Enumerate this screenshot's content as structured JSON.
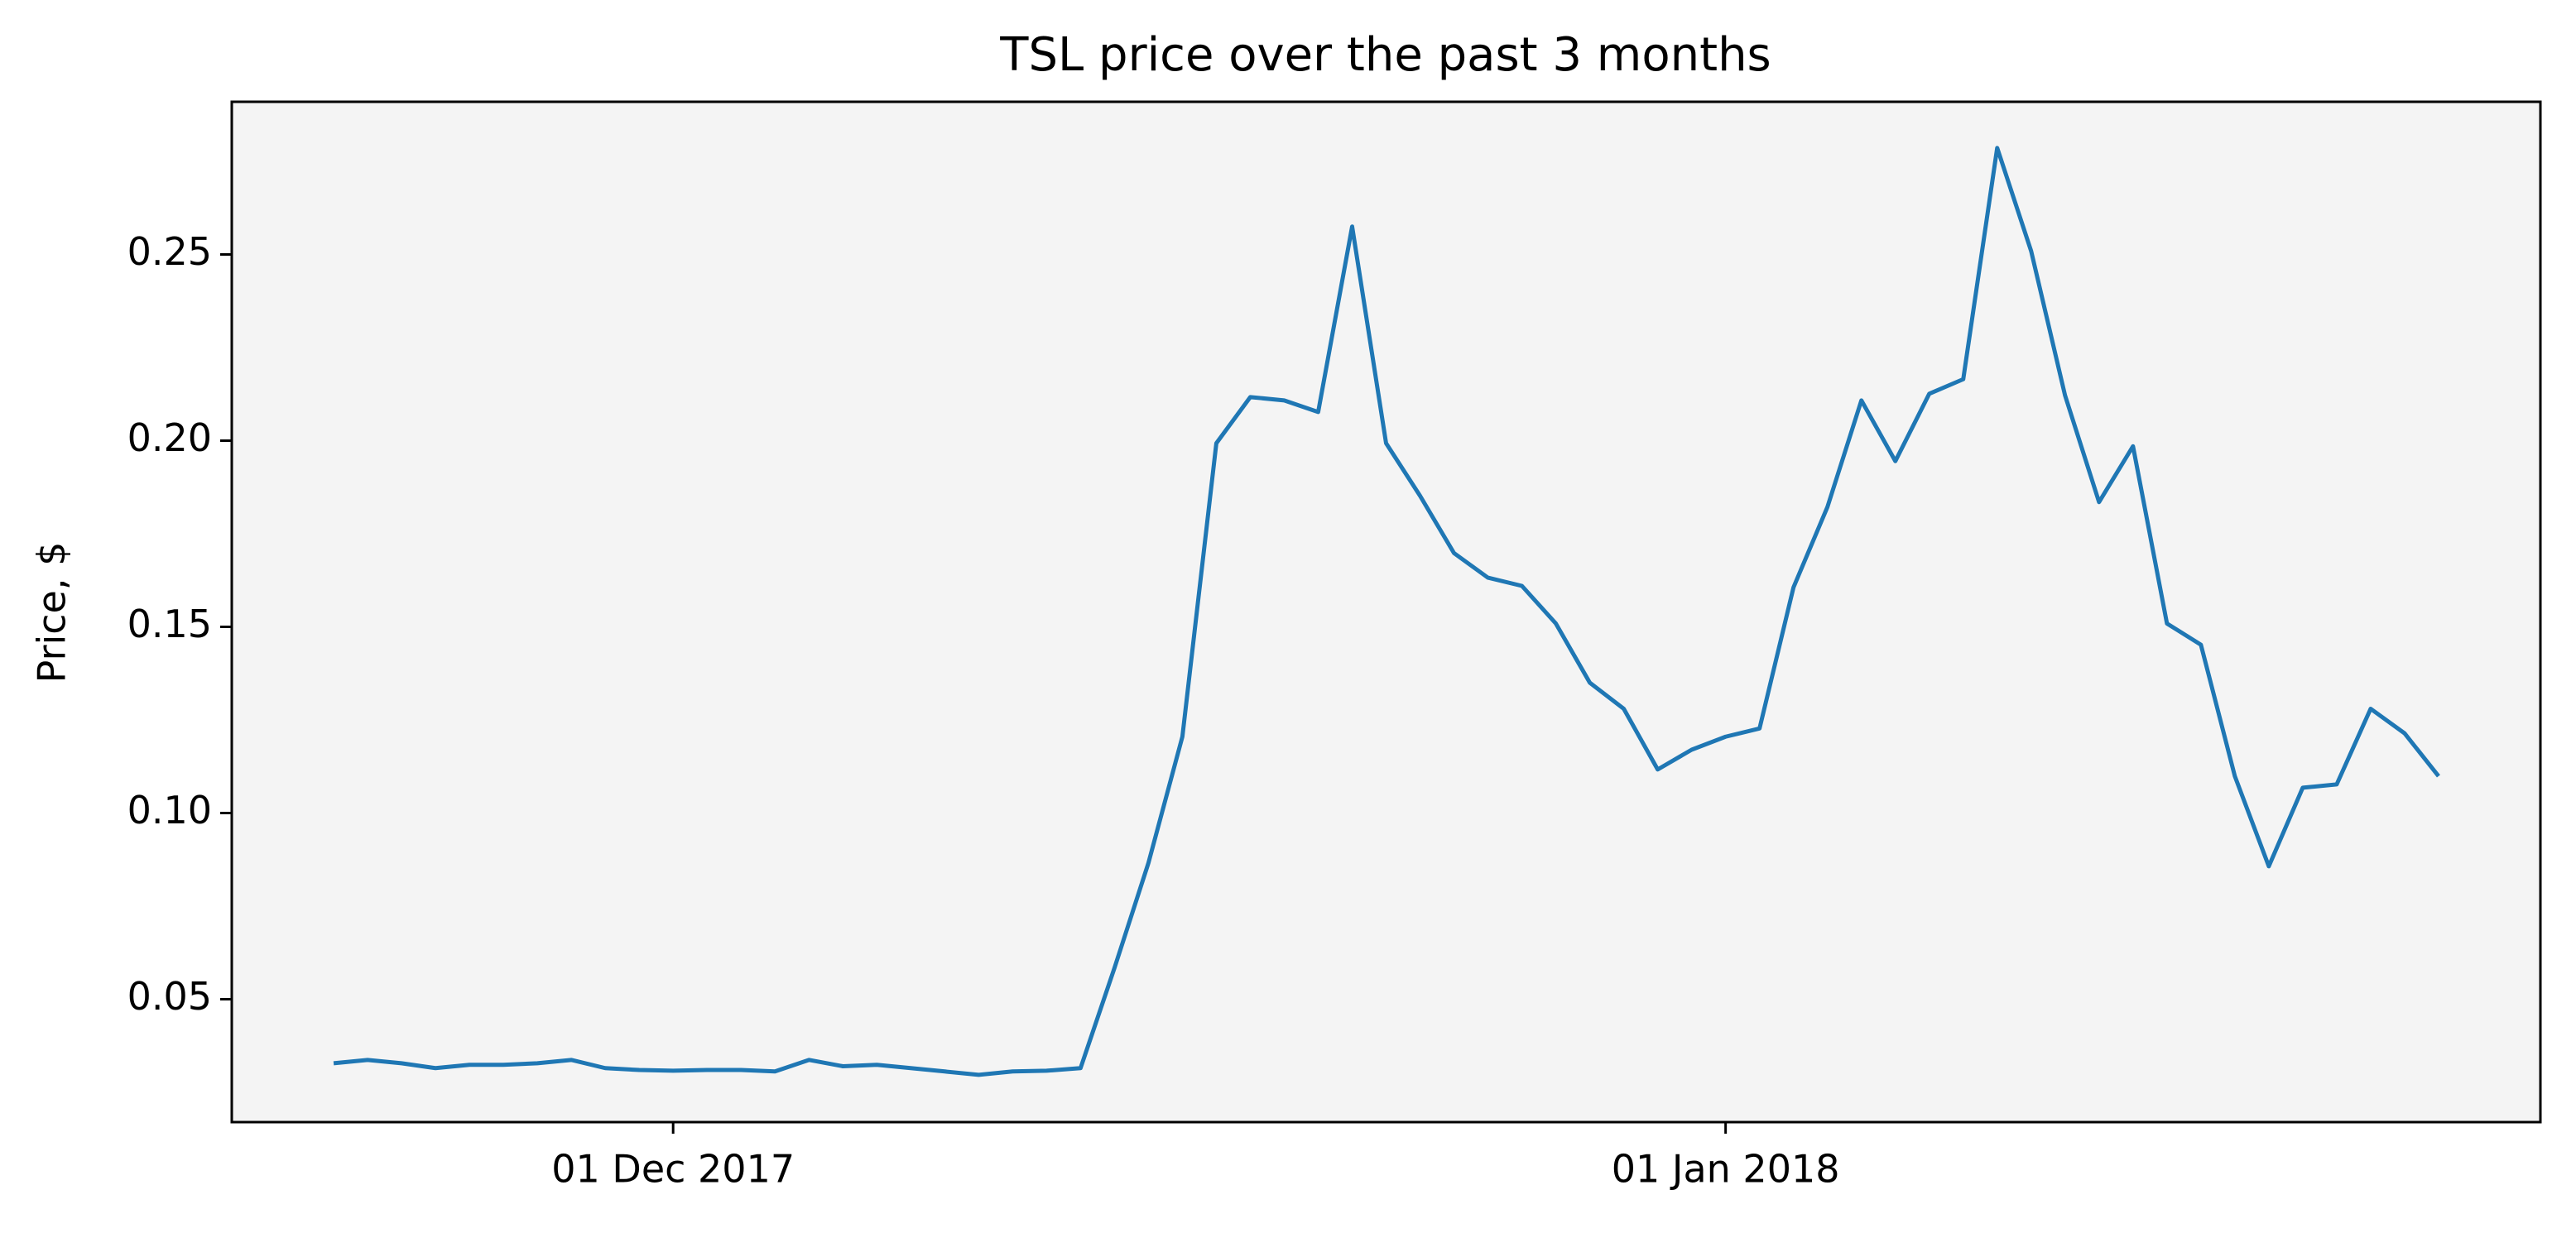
{
  "chart_data": {
    "type": "line",
    "title": "TSL price over the past 3 months",
    "y_label": "Price, $",
    "x": [
      "2017-11-21",
      "2017-11-22",
      "2017-11-23",
      "2017-11-24",
      "2017-11-25",
      "2017-11-26",
      "2017-11-27",
      "2017-11-28",
      "2017-11-29",
      "2017-11-30",
      "2017-12-01",
      "2017-12-02",
      "2017-12-03",
      "2017-12-04",
      "2017-12-05",
      "2017-12-06",
      "2017-12-07",
      "2017-12-08",
      "2017-12-09",
      "2017-12-10",
      "2017-12-11",
      "2017-12-12",
      "2017-12-13",
      "2017-12-14",
      "2017-12-15",
      "2017-12-16",
      "2017-12-17",
      "2017-12-18",
      "2017-12-19",
      "2017-12-20",
      "2017-12-21",
      "2017-12-22",
      "2017-12-23",
      "2017-12-24",
      "2017-12-25",
      "2017-12-26",
      "2017-12-27",
      "2017-12-28",
      "2017-12-29",
      "2017-12-30",
      "2017-12-31",
      "2018-01-01",
      "2018-01-02",
      "2018-01-03",
      "2018-01-04",
      "2018-01-05",
      "2018-01-06",
      "2018-01-07",
      "2018-01-08",
      "2018-01-09",
      "2018-01-10",
      "2018-01-11",
      "2018-01-12",
      "2018-01-13",
      "2018-01-14",
      "2018-01-15",
      "2018-01-16",
      "2018-01-17",
      "2018-01-18",
      "2018-01-19",
      "2018-01-20",
      "2018-01-21",
      "2018-01-22"
    ],
    "series": [
      {
        "color": "#1f77b4",
        "values": [
          0.0328,
          0.0337,
          0.0328,
          0.0315,
          0.0324,
          0.0324,
          0.0328,
          0.0337,
          0.0315,
          0.031,
          0.0308,
          0.031,
          0.031,
          0.0306,
          0.0337,
          0.032,
          0.0324,
          0.0315,
          0.0306,
          0.0297,
          0.0306,
          0.0308,
          0.0315,
          0.0584,
          0.0866,
          0.1205,
          0.1993,
          0.2117,
          0.2108,
          0.2077,
          0.2575,
          0.1993,
          0.1852,
          0.1698,
          0.1632,
          0.161,
          0.1509,
          0.135,
          0.128,
          0.1117,
          0.117,
          0.1205,
          0.1227,
          0.1606,
          0.1822,
          0.2108,
          0.1945,
          0.2126,
          0.2165,
          0.2786,
          0.2509,
          0.2121,
          0.1835,
          0.1985,
          0.1509,
          0.1452,
          0.1099,
          0.0857,
          0.1068,
          0.1077,
          0.128,
          0.1214,
          0.1099
        ]
      }
    ],
    "xlim": [
      "2017-11-18",
      "2018-01-25"
    ],
    "xticks": [
      {
        "value": "2017-12-01",
        "label": "01 Dec 2017"
      },
      {
        "value": "2018-01-01",
        "label": "01 Jan 2018"
      }
    ],
    "ylim": [
      0.017,
      0.291
    ],
    "yticks": [
      {
        "value": 0.05,
        "label": "0.05"
      },
      {
        "value": 0.1,
        "label": "0.10"
      },
      {
        "value": 0.15,
        "label": "0.15"
      },
      {
        "value": 0.2,
        "label": "0.20"
      },
      {
        "value": 0.25,
        "label": "0.25"
      }
    ],
    "background": "#f4f4f4"
  }
}
